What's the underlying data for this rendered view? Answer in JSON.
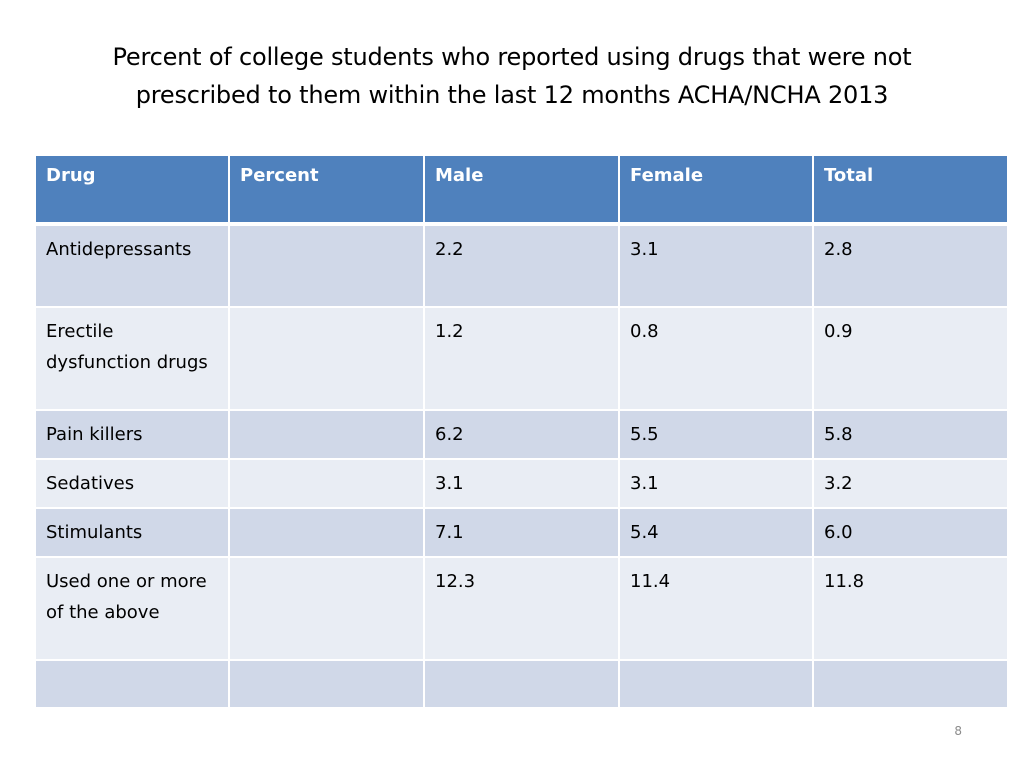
{
  "title": {
    "line1": "Percent of college students who reported using drugs that were not",
    "line2": "prescribed to them within the last 12 months ACHA/NCHA 2013"
  },
  "table": {
    "headers": [
      "Drug",
      "Percent",
      "Male",
      "Female",
      "Total"
    ],
    "rows": [
      [
        "Antidepressants",
        "",
        "2.2",
        "3.1",
        "2.8"
      ],
      [
        "Erectile dysfunction drugs",
        "",
        "1.2",
        "0.8",
        "0.9"
      ],
      [
        "Pain killers",
        "",
        "6.2",
        "5.5",
        "5.8"
      ],
      [
        "Sedatives",
        "",
        "3.1",
        "3.1",
        "3.2"
      ],
      [
        "Stimulants",
        "",
        "7.1",
        "5.4",
        "6.0"
      ],
      [
        "Used one or more of the above",
        "",
        "12.3",
        "11.4",
        "11.8"
      ],
      [
        "",
        "",
        "",
        "",
        ""
      ]
    ]
  },
  "slide_number": "8",
  "colors": {
    "header": "#4f81bd",
    "band_dark": "#d0d8e8",
    "band_light": "#e9edf4"
  }
}
